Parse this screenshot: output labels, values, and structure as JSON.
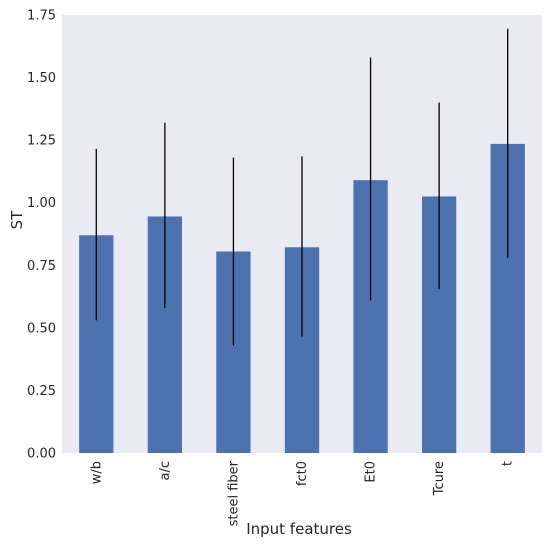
{
  "chart_data": {
    "type": "bar",
    "xlabel": "Input features",
    "ylabel": "ST",
    "categories": [
      "w/b",
      "a/c",
      "steel fiber",
      "fct0",
      "Et0",
      "Tcure",
      "t"
    ],
    "values": [
      0.87,
      0.945,
      0.805,
      0.822,
      1.09,
      1.025,
      1.235
    ],
    "error_low": [
      0.53,
      0.58,
      0.43,
      0.465,
      0.61,
      0.655,
      0.78
    ],
    "error_high": [
      1.215,
      1.32,
      1.18,
      1.185,
      1.58,
      1.4,
      1.695
    ],
    "ylim": [
      0,
      1.75
    ],
    "yticks": [
      "0.00",
      "0.25",
      "0.50",
      "0.75",
      "1.00",
      "1.25",
      "1.50",
      "1.75"
    ],
    "grid": false,
    "colors": {
      "bar": "#4c72b0",
      "plot_background": "#eaeaf2",
      "error_bar": "#000000"
    }
  }
}
